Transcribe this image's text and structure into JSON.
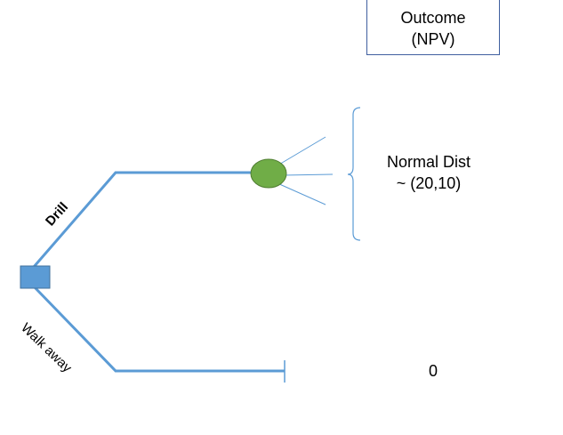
{
  "outcome_header": {
    "line1": "Outcome",
    "line2": "(NPV)"
  },
  "branches": {
    "drill": "Drill",
    "walk_away": "Walk away"
  },
  "distribution": {
    "line1": "Normal Dist",
    "line2": "~ (20,10)"
  },
  "walk_away_outcome": "0",
  "colors": {
    "branch_line": "#5b9bd5",
    "decision_node_fill": "#5b9bd5",
    "decision_node_stroke": "#41719c",
    "chance_node_fill": "#70ad47",
    "chance_node_stroke": "#507e32",
    "outcome_box_border": "#3f5f9f"
  }
}
